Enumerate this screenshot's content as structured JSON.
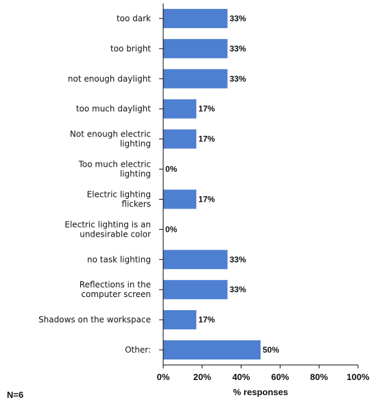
{
  "chart_data": {
    "type": "bar",
    "orientation": "horizontal",
    "categories": [
      [
        "too dark"
      ],
      [
        "too bright"
      ],
      [
        "not enough daylight"
      ],
      [
        "too much daylight"
      ],
      [
        "Not enough electric",
        "lighting"
      ],
      [
        "Too much electric",
        "lighting"
      ],
      [
        "Electric lighting",
        "flickers"
      ],
      [
        "Electric lighting is an",
        "undesirable color"
      ],
      [
        "no task lighting"
      ],
      [
        "Reflections in the",
        "computer screen"
      ],
      [
        "Shadows on the workspace"
      ],
      [
        "Other:"
      ]
    ],
    "values": [
      33,
      33,
      33,
      17,
      17,
      0,
      17,
      0,
      33,
      33,
      17,
      50
    ],
    "value_labels": [
      "33%",
      "33%",
      "33%",
      "17%",
      "17%",
      "0%",
      "17%",
      "0%",
      "33%",
      "33%",
      "17%",
      "50%"
    ],
    "xlabel": "% responses",
    "xlim": [
      0,
      100
    ],
    "xticks": [
      0,
      20,
      40,
      60,
      80,
      100
    ],
    "xtick_labels": [
      "0%",
      "20%",
      "40%",
      "60%",
      "80%",
      "100%"
    ],
    "bar_color": "#4f7fd1",
    "grid": false,
    "note": "N=6"
  }
}
